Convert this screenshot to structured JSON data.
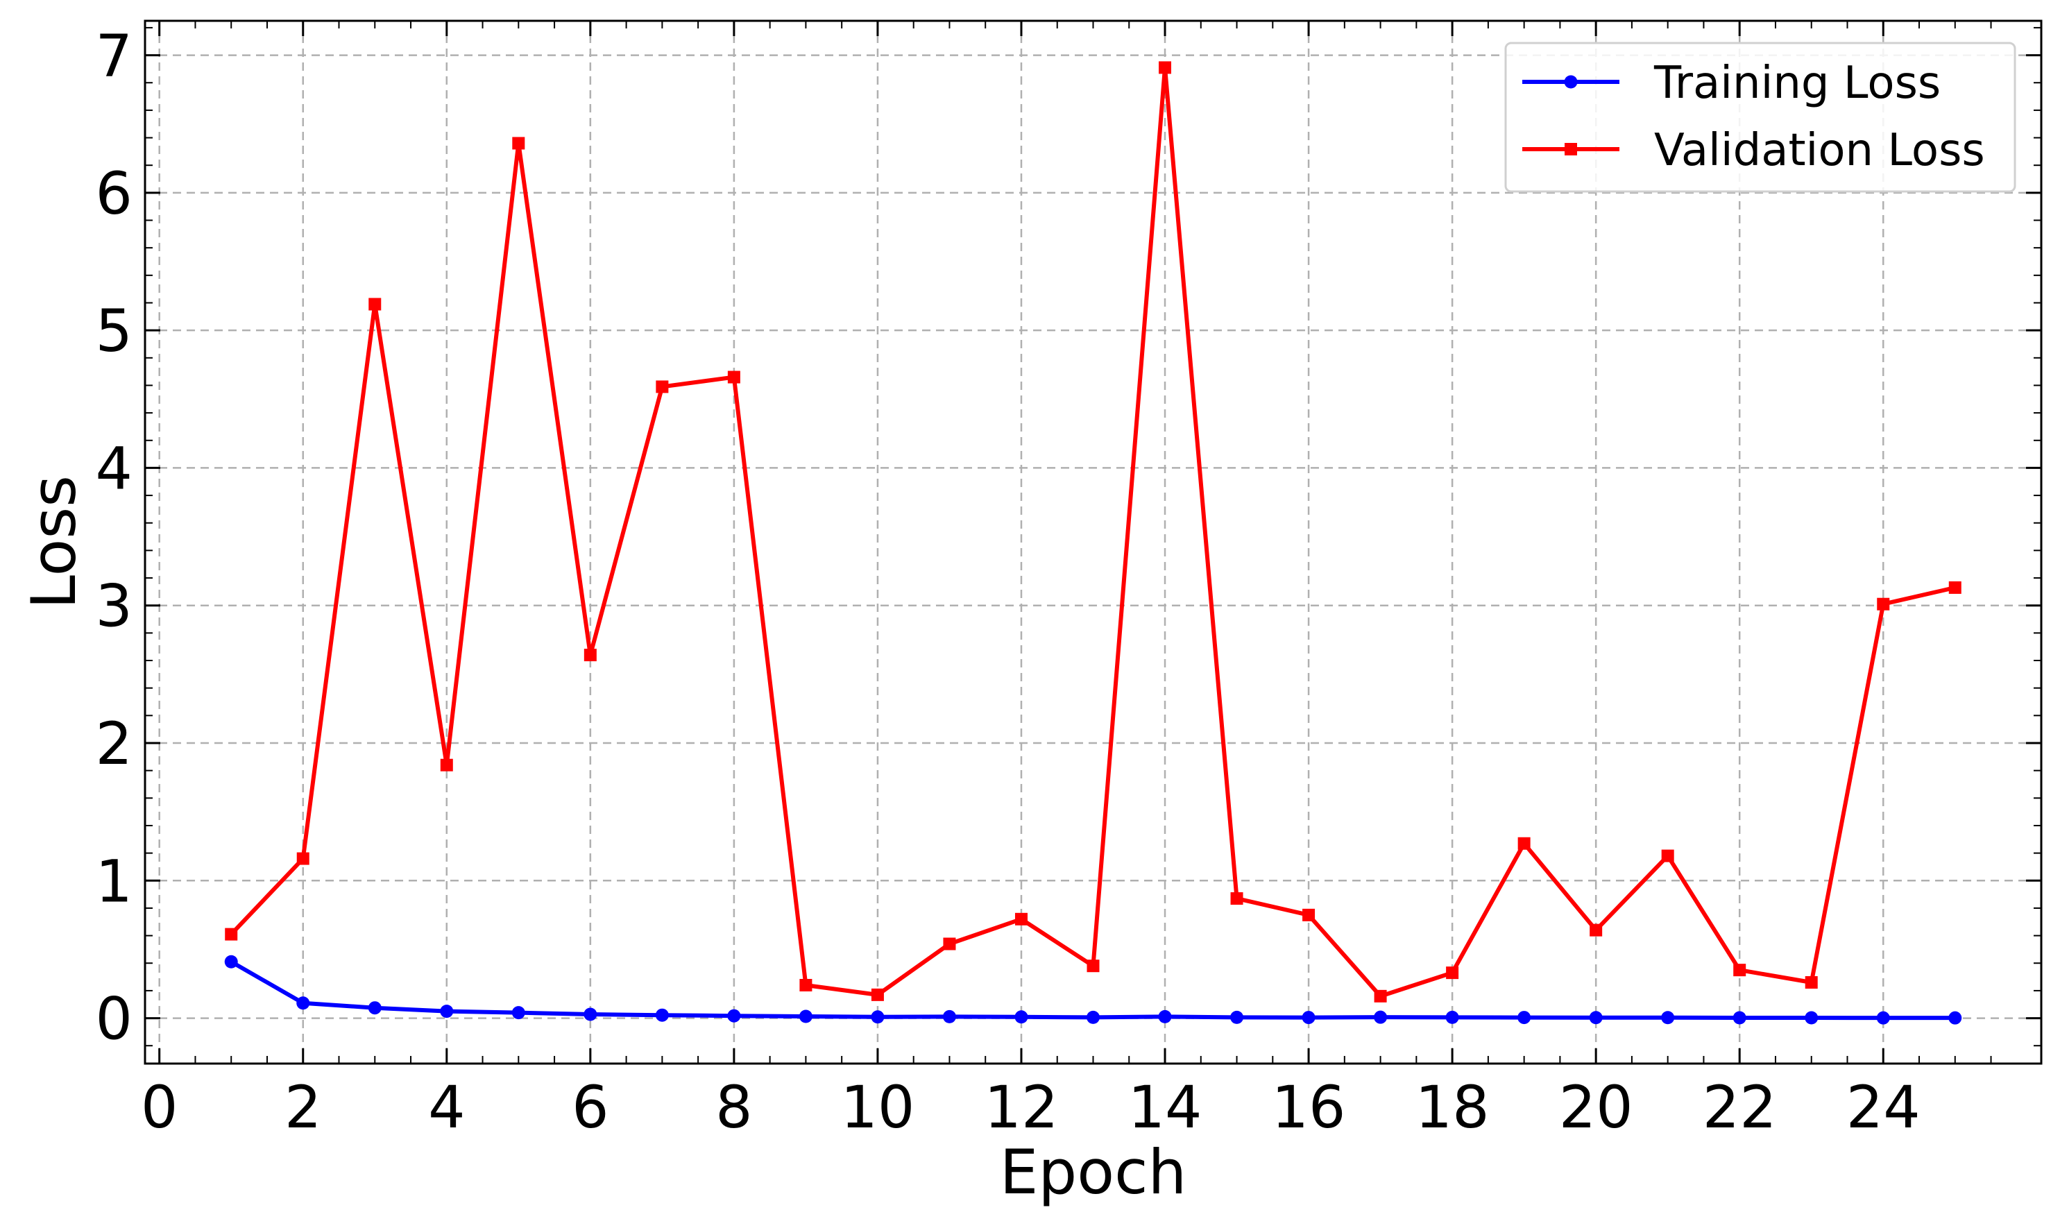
{
  "chart_data": {
    "type": "line",
    "xlabel": "Epoch",
    "ylabel": "Loss",
    "xlim": [
      -0.2,
      26.2
    ],
    "ylim": [
      -0.33,
      7.25
    ],
    "x_ticks": [
      "0",
      "2",
      "4",
      "6",
      "8",
      "10",
      "12",
      "14",
      "16",
      "18",
      "20",
      "22",
      "24"
    ],
    "y_ticks": [
      "0",
      "1",
      "2",
      "3",
      "4",
      "5",
      "6",
      "7"
    ],
    "grid": true,
    "legend_position": "top-right",
    "x": [
      1,
      2,
      3,
      4,
      5,
      6,
      7,
      8,
      9,
      10,
      11,
      12,
      13,
      14,
      15,
      16,
      17,
      18,
      19,
      20,
      21,
      22,
      23,
      24,
      25
    ],
    "series": [
      {
        "name": "Training Loss",
        "color": "#0000ff",
        "marker": "circle",
        "values": [
          0.41,
          0.11,
          0.075,
          0.05,
          0.04,
          0.028,
          0.022,
          0.017,
          0.013,
          0.009,
          0.011,
          0.009,
          0.006,
          0.011,
          0.006,
          0.005,
          0.007,
          0.006,
          0.005,
          0.004,
          0.004,
          0.003,
          0.003,
          0.002,
          0.002
        ]
      },
      {
        "name": "Validation Loss",
        "color": "#ff0000",
        "marker": "square",
        "values": [
          0.61,
          1.16,
          5.19,
          1.84,
          6.36,
          2.64,
          4.59,
          4.66,
          0.24,
          0.17,
          0.54,
          0.72,
          0.38,
          6.91,
          0.87,
          0.75,
          0.16,
          0.33,
          1.27,
          0.64,
          1.18,
          0.35,
          0.26,
          3.01,
          3.13
        ]
      }
    ]
  }
}
